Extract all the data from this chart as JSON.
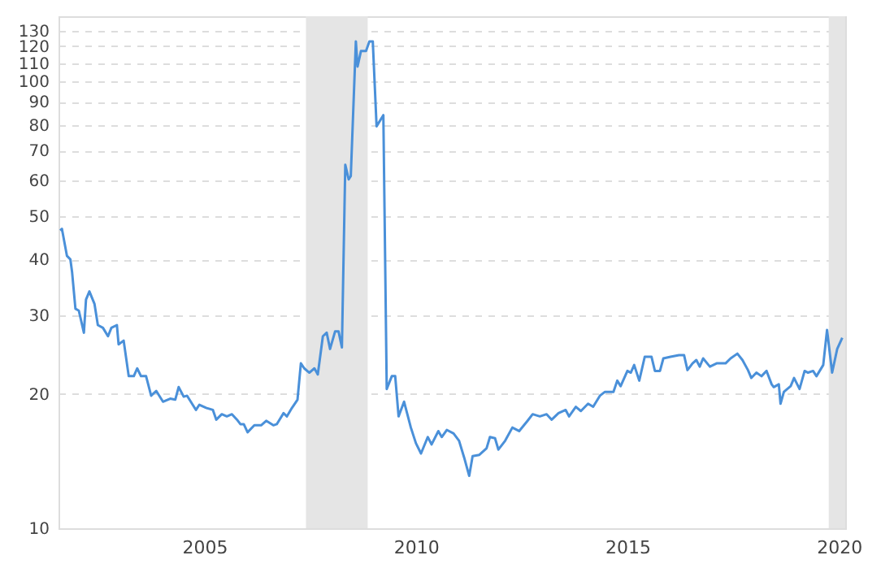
{
  "chart_data": {
    "type": "line",
    "log": "y",
    "grid": "y",
    "marker": "none",
    "line_style": "solid",
    "xlim": [
      2001.55,
      2020.15
    ],
    "xticks": [
      2005,
      2010,
      2015,
      2020
    ],
    "ylim": [
      10,
      140
    ],
    "yticks": [
      10,
      20,
      30,
      40,
      50,
      60,
      70,
      80,
      90,
      100,
      110,
      120,
      130
    ],
    "bands": [
      {
        "axis": "x",
        "from": 2007.4,
        "to": 2008.86,
        "color": "#e5e5e5"
      },
      {
        "axis": "x",
        "from": 2019.76,
        "to": 2020.15,
        "color": "#e5e5e5"
      }
    ],
    "series": [
      {
        "color": "#4a90d9",
        "x": [
          2001.59,
          2001.63,
          2001.75,
          2001.83,
          2001.87,
          2001.95,
          2002.03,
          2002.15,
          2002.2,
          2002.28,
          2002.4,
          2002.48,
          2002.6,
          2002.72,
          2002.8,
          2002.93,
          2002.97,
          2003.09,
          2003.21,
          2003.33,
          2003.41,
          2003.5,
          2003.62,
          2003.74,
          2003.86,
          2004.02,
          2004.19,
          2004.31,
          2004.39,
          2004.51,
          2004.59,
          2004.8,
          2004.88,
          2005.04,
          2005.2,
          2005.28,
          2005.41,
          2005.53,
          2005.65,
          2005.77,
          2005.85,
          2005.93,
          2006.02,
          2006.18,
          2006.34,
          2006.46,
          2006.63,
          2006.71,
          2006.87,
          2006.95,
          2007.07,
          2007.2,
          2007.28,
          2007.36,
          2007.48,
          2007.6,
          2007.68,
          2007.8,
          2007.89,
          2007.97,
          2008.09,
          2008.17,
          2008.25,
          2008.33,
          2008.41,
          2008.46,
          2008.58,
          2008.62,
          2008.7,
          2008.82,
          2008.9,
          2008.98,
          2009.07,
          2009.23,
          2009.31,
          2009.43,
          2009.51,
          2009.59,
          2009.72,
          2009.88,
          2010.0,
          2010.12,
          2010.28,
          2010.37,
          2010.53,
          2010.61,
          2010.73,
          2010.89,
          2011.02,
          2011.14,
          2011.26,
          2011.34,
          2011.5,
          2011.67,
          2011.75,
          2011.87,
          2011.95,
          2012.11,
          2012.28,
          2012.44,
          2012.64,
          2012.76,
          2012.93,
          2013.09,
          2013.21,
          2013.37,
          2013.54,
          2013.62,
          2013.78,
          2013.9,
          2014.07,
          2014.19,
          2014.35,
          2014.47,
          2014.67,
          2014.76,
          2014.84,
          2015.0,
          2015.08,
          2015.16,
          2015.28,
          2015.41,
          2015.57,
          2015.65,
          2015.77,
          2015.85,
          2016.02,
          2016.22,
          2016.34,
          2016.42,
          2016.54,
          2016.63,
          2016.71,
          2016.79,
          2016.95,
          2017.11,
          2017.32,
          2017.44,
          2017.6,
          2017.72,
          2017.85,
          2017.93,
          2018.05,
          2018.17,
          2018.29,
          2018.41,
          2018.46,
          2018.58,
          2018.62,
          2018.7,
          2018.86,
          2018.94,
          2019.07,
          2019.19,
          2019.27,
          2019.39,
          2019.47,
          2019.63,
          2019.72,
          2019.84,
          2019.96,
          2020.08
        ],
        "values": [
          46.4,
          46.8,
          40.7,
          40.0,
          37.5,
          31.0,
          30.7,
          27.4,
          32.5,
          33.9,
          31.8,
          28.5,
          28.1,
          26.9,
          28.1,
          28.5,
          25.8,
          26.3,
          21.9,
          21.9,
          22.8,
          21.9,
          21.9,
          19.8,
          20.3,
          19.2,
          19.5,
          19.4,
          20.7,
          19.7,
          19.8,
          18.4,
          18.9,
          18.6,
          18.4,
          17.5,
          18.0,
          17.8,
          18.0,
          17.5,
          17.1,
          17.1,
          16.4,
          17.0,
          17.0,
          17.4,
          17.0,
          17.1,
          18.1,
          17.8,
          18.6,
          19.4,
          23.4,
          22.8,
          22.3,
          22.8,
          22.1,
          26.9,
          27.4,
          25.2,
          27.6,
          27.6,
          25.4,
          65.1,
          60.4,
          61.4,
          123,
          108,
          117,
          117,
          123,
          123,
          79.4,
          84.1,
          20.5,
          21.9,
          21.9,
          17.8,
          19.2,
          16.8,
          15.5,
          14.7,
          16.0,
          15.4,
          16.5,
          16.0,
          16.6,
          16.3,
          15.7,
          14.4,
          13.1,
          14.5,
          14.6,
          15.1,
          16.0,
          15.9,
          15.0,
          15.7,
          16.8,
          16.5,
          17.4,
          18.0,
          17.8,
          18.0,
          17.5,
          18.1,
          18.4,
          17.8,
          18.7,
          18.3,
          19.0,
          18.7,
          19.8,
          20.2,
          20.2,
          21.4,
          20.8,
          22.5,
          22.3,
          23.2,
          21.4,
          24.2,
          24.2,
          22.5,
          22.5,
          24.0,
          24.2,
          24.4,
          24.4,
          22.6,
          23.4,
          23.8,
          23.0,
          24.0,
          23.0,
          23.4,
          23.4,
          24.0,
          24.6,
          23.8,
          22.6,
          21.7,
          22.3,
          21.9,
          22.5,
          21.0,
          20.7,
          21.0,
          19.0,
          20.2,
          20.8,
          21.7,
          20.5,
          22.5,
          22.3,
          22.5,
          21.9,
          23.2,
          27.8,
          22.3,
          25.2,
          26.7
        ]
      }
    ]
  }
}
